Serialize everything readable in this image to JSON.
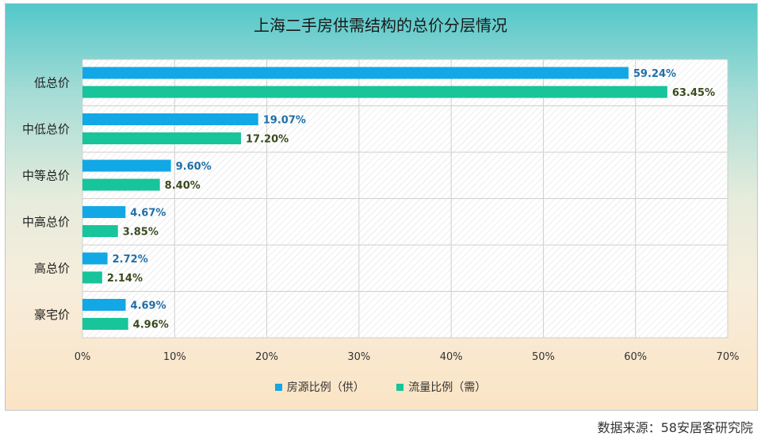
{
  "source": "数据来源：58安居客研究院",
  "chart_data": {
    "type": "bar",
    "orientation": "horizontal",
    "title": "上海二手房供需结构的总价分层情况",
    "categories": [
      "低总价",
      "中低总价",
      "中等总价",
      "中高总价",
      "高总价",
      "豪宅价"
    ],
    "series": [
      {
        "name": "房源比例（供）",
        "color": "#12a8e6",
        "label_color": "#1f6fa6",
        "values": [
          59.24,
          19.07,
          9.6,
          4.67,
          2.72,
          4.69
        ],
        "labels": [
          "59.24%",
          "19.07%",
          "9.60%",
          "4.67%",
          "2.72%",
          "4.69%"
        ]
      },
      {
        "name": "流量比例（需）",
        "color": "#18c49a",
        "label_color": "#3a4a1f",
        "values": [
          63.45,
          17.2,
          8.4,
          3.85,
          2.14,
          4.96
        ],
        "labels": [
          "63.45%",
          "17.20%",
          "8.40%",
          "3.85%",
          "2.14%",
          "4.96%"
        ]
      }
    ],
    "x_ticks": [
      "0%",
      "10%",
      "20%",
      "30%",
      "40%",
      "50%",
      "60%",
      "70%"
    ],
    "xlim": [
      0,
      70
    ],
    "grid": true,
    "legend": "bottom"
  }
}
